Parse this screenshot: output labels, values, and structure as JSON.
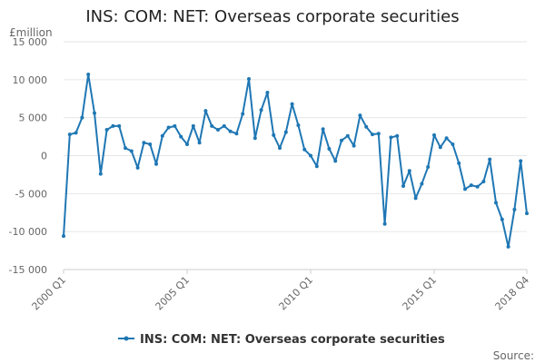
{
  "chart_data": {
    "type": "line",
    "title": "INS: COM: NET: Overseas corporate securities",
    "ylabel": "£million",
    "xlabel": "",
    "ylim": [
      -15000,
      15000
    ],
    "yticks": [
      15000,
      10000,
      5000,
      0,
      -5000,
      -10000,
      -15000
    ],
    "ytick_labels": [
      "15 000",
      "10 000",
      "5 000",
      "0",
      "-5 000",
      "-10 000",
      "-15 000"
    ],
    "xticks": [
      {
        "index": 0,
        "label": "2000 Q1"
      },
      {
        "index": 20,
        "label": "2005 Q1"
      },
      {
        "index": 40,
        "label": "2010 Q1"
      },
      {
        "index": 60,
        "label": "2015 Q1"
      },
      {
        "index": 75,
        "label": "2018 Q4"
      }
    ],
    "grid": true,
    "legend_position": "bottom",
    "color": "#1f77b4",
    "series": [
      {
        "name": "INS: COM: NET: Overseas corporate securities",
        "start": "2000 Q1",
        "end": "2018 Q4",
        "values": [
          -10600,
          2800,
          3000,
          5000,
          10700,
          5600,
          -2400,
          3400,
          3900,
          3900,
          1000,
          600,
          -1600,
          1700,
          1500,
          -1100,
          2600,
          3700,
          3900,
          2500,
          1500,
          3900,
          1700,
          5900,
          3900,
          3400,
          3900,
          3200,
          2900,
          5500,
          10100,
          2300,
          6000,
          8300,
          2700,
          1000,
          3100,
          6800,
          4000,
          800,
          0,
          -1400,
          3500,
          900,
          -700,
          2000,
          2600,
          1300,
          5300,
          3800,
          2800,
          2900,
          -9000,
          2400,
          2600,
          -4000,
          -2000,
          -5600,
          -3700,
          -1500,
          2700,
          1100,
          2300,
          1500,
          -1000,
          -4400,
          -3900,
          -4100,
          -3400,
          -500,
          -6200,
          -8400,
          -12000,
          -7100,
          -700,
          -7600
        ]
      }
    ],
    "source": "Source:"
  }
}
